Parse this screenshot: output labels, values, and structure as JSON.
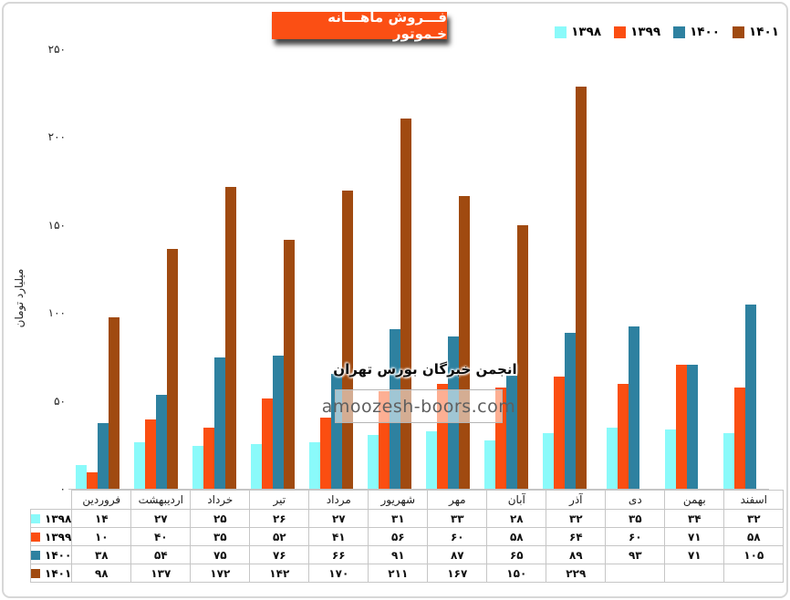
{
  "page": {
    "background": "#ffffff",
    "frame_border_color": "#d7d7d7"
  },
  "title": {
    "text": "فـــروش ماهـــانه خـموتور",
    "bg_color": "#FB4F14",
    "text_color": "#ffffff"
  },
  "legend": {
    "items": [
      {
        "label": "۱۳۹۸",
        "color": "#8AFAFA"
      },
      {
        "label": "۱۳۹۹",
        "color": "#FB4E11"
      },
      {
        "label": "۱۴۰۰",
        "color": "#2E81A0"
      },
      {
        "label": "۱۴۰۱",
        "color": "#A04A10"
      }
    ]
  },
  "watermark": {
    "line1": "انجمن خبرگان بورس تهران",
    "line2": "amoozesh-boors.com"
  },
  "chart_data": {
    "type": "bar",
    "title": "فـــروش ماهـــانه خـموتور",
    "ylabel": "میلیارد تومان",
    "ylim": [
      0,
      250
    ],
    "grid": false,
    "legend_position": "top-right",
    "y_ticks": [
      {
        "value": 0,
        "label": "۰"
      },
      {
        "value": 50,
        "label": "۵۰"
      },
      {
        "value": 100,
        "label": "۱۰۰"
      },
      {
        "value": 150,
        "label": "۱۵۰"
      },
      {
        "value": 200,
        "label": "۲۰۰"
      },
      {
        "value": 250,
        "label": "۲۵۰"
      }
    ],
    "categories": [
      "فروردین",
      "اردیبهشت",
      "خرداد",
      "تیر",
      "مرداد",
      "شهریور",
      "مهر",
      "آبان",
      "آذر",
      "دی",
      "بهمن",
      "اسفند"
    ],
    "series": [
      {
        "name": "۱۳۹۸",
        "color": "#8AFAFA",
        "values": [
          14,
          27,
          25,
          26,
          27,
          31,
          33,
          28,
          32,
          35,
          34,
          32
        ],
        "labels": [
          "۱۴",
          "۲۷",
          "۲۵",
          "۲۶",
          "۲۷",
          "۳۱",
          "۳۳",
          "۲۸",
          "۳۲",
          "۳۵",
          "۳۴",
          "۳۲"
        ]
      },
      {
        "name": "۱۳۹۹",
        "color": "#FB4E11",
        "values": [
          10,
          40,
          35,
          52,
          41,
          56,
          60,
          58,
          64,
          60,
          71,
          58
        ],
        "labels": [
          "۱۰",
          "۴۰",
          "۳۵",
          "۵۲",
          "۴۱",
          "۵۶",
          "۶۰",
          "۵۸",
          "۶۴",
          "۶۰",
          "۷۱",
          "۵۸"
        ]
      },
      {
        "name": "۱۴۰۰",
        "color": "#2E81A0",
        "values": [
          38,
          54,
          75,
          76,
          66,
          91,
          87,
          65,
          89,
          93,
          71,
          105
        ],
        "labels": [
          "۳۸",
          "۵۴",
          "۷۵",
          "۷۶",
          "۶۶",
          "۹۱",
          "۸۷",
          "۶۵",
          "۸۹",
          "۹۳",
          "۷۱",
          "۱۰۵"
        ]
      },
      {
        "name": "۱۴۰۱",
        "color": "#A04A10",
        "values": [
          98,
          137,
          172,
          142,
          170,
          211,
          167,
          150,
          229,
          null,
          null,
          null
        ],
        "labels": [
          "۹۸",
          "۱۳۷",
          "۱۷۲",
          "۱۴۲",
          "۱۷۰",
          "۲۱۱",
          "۱۶۷",
          "۱۵۰",
          "۲۲۹",
          "",
          "",
          ""
        ]
      }
    ]
  }
}
